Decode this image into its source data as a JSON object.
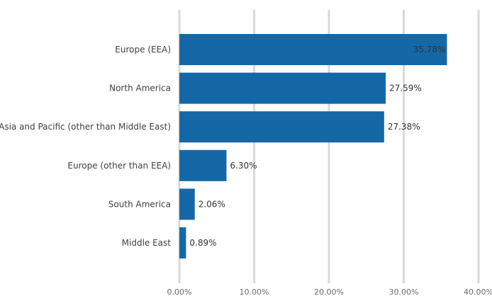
{
  "chart_data": {
    "type": "bar",
    "orientation": "horizontal",
    "title": "",
    "xlabel": "",
    "ylabel": "",
    "categories": [
      "Europe (EEA)",
      "North America",
      "Asia and Pacific (other than Middle East)",
      "Europe (other than EEA)",
      "South America",
      "Middle East"
    ],
    "values": [
      35.78,
      27.59,
      27.38,
      6.3,
      2.06,
      0.89
    ],
    "data_labels": [
      "35.78%",
      "27.59%",
      "27.38%",
      "6.30%",
      "2.06%",
      "0.89%"
    ],
    "xlim": [
      0,
      40
    ],
    "x_ticks": [
      0,
      10,
      20,
      30,
      40
    ],
    "x_tick_labels": [
      "0.00%",
      "10.00%",
      "20.00%",
      "30.00%",
      "40.00%"
    ],
    "grid": "vertical",
    "legend": "none",
    "colors": {
      "bar": "#1568a6",
      "grid": "#d9d9d9",
      "text": "#404040"
    }
  }
}
